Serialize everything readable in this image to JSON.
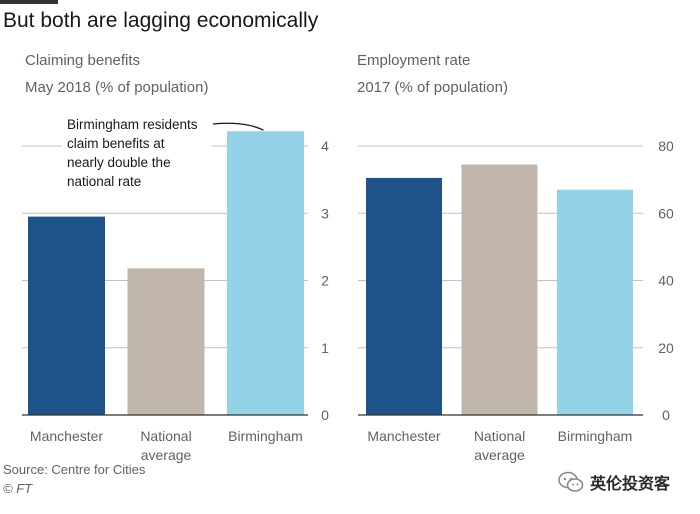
{
  "title": "But both are lagging economically",
  "source": "Source: Centre for Cities",
  "copyright": "© FT",
  "watermark": "英伦投资客",
  "colors": {
    "manchester": "#1e538a",
    "national": "#c1b6ac",
    "birmingham": "#94d3e7",
    "grid": "#c4c1be",
    "axis": "#33302e",
    "text": "#66605c"
  },
  "chart_data": [
    {
      "type": "bar",
      "title": "Claiming benefits",
      "subtitle": "May 2018 (% of population)",
      "categories": [
        [
          "Manchester"
        ],
        [
          "National",
          "average"
        ],
        [
          "Birmingham"
        ]
      ],
      "values": [
        2.95,
        2.18,
        4.22
      ],
      "ylim": [
        0,
        4
      ],
      "yticks": [
        0,
        1,
        2,
        3,
        4
      ],
      "annotation": [
        "Birmingham residents",
        "claim benefits at",
        "nearly double the",
        "national rate"
      ]
    },
    {
      "type": "bar",
      "title": "Employment rate",
      "subtitle": "2017 (% of population)",
      "categories": [
        [
          "Manchester"
        ],
        [
          "National",
          "average"
        ],
        [
          "Birmingham"
        ]
      ],
      "values": [
        70.5,
        74.5,
        67
      ],
      "ylim": [
        0,
        80
      ],
      "yticks": [
        0,
        20,
        40,
        60,
        80
      ]
    }
  ]
}
